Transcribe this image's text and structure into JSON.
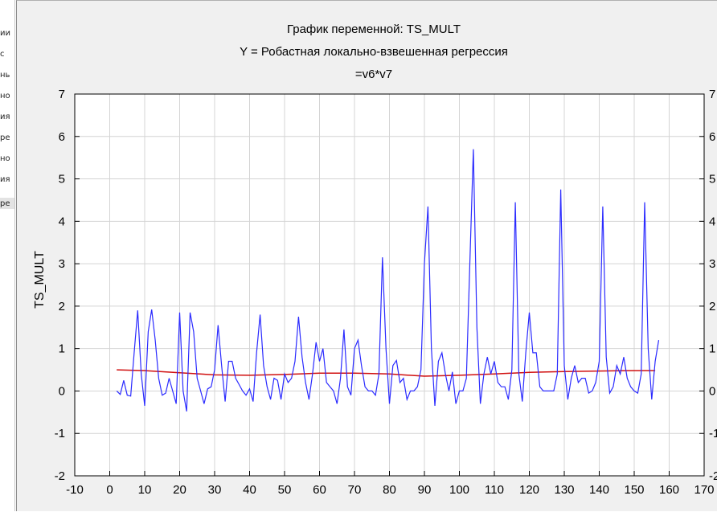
{
  "side_panel": {
    "items": [
      "ии",
      "с",
      "нь",
      "но",
      "ия",
      "ре",
      "но",
      "ия",
      "ре"
    ],
    "selected_index": 8
  },
  "chart_data": {
    "type": "line",
    "title": "График переменной: TS_MULT",
    "subtitle": "Y = Робастная локально-взвешенная регрессия",
    "formula": "=v6*v7",
    "xlabel": "",
    "ylabel": "TS_MULT",
    "xlim": [
      -10,
      170
    ],
    "ylim": [
      -2,
      7
    ],
    "x_ticks": [
      "-10",
      "0",
      "10",
      "20",
      "30",
      "40",
      "50",
      "60",
      "70",
      "80",
      "90",
      "100",
      "110",
      "120",
      "130",
      "140",
      "150",
      "160",
      "170"
    ],
    "y_ticks": [
      "-2",
      "-1",
      "0",
      "1",
      "2",
      "3",
      "4",
      "5",
      "6",
      "7"
    ],
    "grid": true,
    "colors": {
      "series": "#2b2bff",
      "trend": "#d01010",
      "frame_bg": "#f0f0f0"
    },
    "series": {
      "x_start": 2,
      "x_step": 1,
      "values": [
        0.0,
        -0.08,
        0.25,
        -0.1,
        -0.12,
        0.9,
        1.9,
        0.4,
        -0.35,
        1.4,
        1.92,
        1.2,
        0.3,
        -0.1,
        -0.05,
        0.3,
        0.0,
        -0.3,
        1.85,
        0.0,
        -0.48,
        1.85,
        1.4,
        0.3,
        0.0,
        -0.3,
        0.05,
        0.1,
        0.5,
        1.55,
        0.6,
        -0.25,
        0.7,
        0.7,
        0.3,
        0.15,
        0.0,
        -0.1,
        0.05,
        -0.25,
        0.9,
        1.8,
        0.6,
        0.1,
        -0.2,
        0.3,
        0.25,
        -0.2,
        0.4,
        0.2,
        0.3,
        0.7,
        1.75,
        0.8,
        0.2,
        -0.2,
        0.4,
        1.15,
        0.7,
        1.0,
        0.2,
        0.1,
        0.0,
        -0.3,
        0.3,
        1.45,
        0.1,
        -0.1,
        1.0,
        1.2,
        0.6,
        0.1,
        0.0,
        0.0,
        -0.1,
        0.4,
        3.15,
        1.0,
        -0.3,
        0.6,
        0.72,
        0.2,
        0.3,
        -0.2,
        0.0,
        0.0,
        0.1,
        0.5,
        3.0,
        4.35,
        1.0,
        -0.35,
        0.7,
        0.9,
        0.4,
        0.0,
        0.45,
        -0.3,
        0.0,
        0.0,
        0.3,
        3.0,
        5.7,
        1.5,
        -0.3,
        0.4,
        0.8,
        0.4,
        0.7,
        0.2,
        0.1,
        0.1,
        -0.2,
        0.5,
        4.45,
        0.4,
        -0.25,
        0.9,
        1.85,
        0.9,
        0.9,
        0.1,
        0.0,
        0.0,
        0.0,
        0.0,
        0.4,
        4.75,
        0.6,
        -0.2,
        0.3,
        0.6,
        0.2,
        0.3,
        0.3,
        -0.05,
        0.0,
        0.2,
        0.7,
        4.35,
        0.8,
        -0.05,
        0.1,
        0.6,
        0.4,
        0.8,
        0.3,
        0.1,
        0.0,
        -0.05,
        0.4,
        4.45,
        1.0,
        -0.2,
        0.7,
        1.2
      ]
    },
    "trend": {
      "x": [
        2,
        10,
        20,
        30,
        40,
        50,
        60,
        70,
        80,
        90,
        100,
        110,
        120,
        130,
        140,
        150,
        156
      ],
      "y": [
        0.5,
        0.48,
        0.43,
        0.38,
        0.37,
        0.39,
        0.42,
        0.42,
        0.4,
        0.35,
        0.37,
        0.4,
        0.44,
        0.46,
        0.47,
        0.48,
        0.48
      ]
    }
  }
}
